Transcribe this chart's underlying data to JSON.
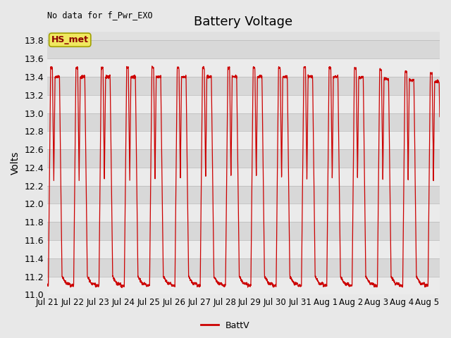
{
  "title": "Battery Voltage",
  "top_left_text": "No data for f_Pwr_EXO",
  "legend_label": "BattV",
  "box_label": "HS_met",
  "ylabel": "Volts",
  "ylim": [
    11.0,
    13.9
  ],
  "yticks": [
    11.0,
    11.2,
    11.4,
    11.6,
    11.8,
    12.0,
    12.2,
    12.4,
    12.6,
    12.8,
    13.0,
    13.2,
    13.4,
    13.6,
    13.8
  ],
  "xtick_labels": [
    "Jul 21",
    "Jul 22",
    "Jul 23",
    "Jul 24",
    "Jul 25",
    "Jul 26",
    "Jul 27",
    "Jul 28",
    "Jul 29",
    "Jul 30",
    "Jul 31",
    "Aug 1",
    "Aug 2",
    "Aug 3",
    "Aug 4",
    "Aug 5"
  ],
  "line_color": "#cc0000",
  "fig_bg": "#e8e8e8",
  "plot_bg": "#e0e0e0",
  "band_light": "#ebebeb",
  "band_dark": "#d8d8d8",
  "title_fontsize": 13,
  "label_fontsize": 10,
  "tick_fontsize": 9
}
